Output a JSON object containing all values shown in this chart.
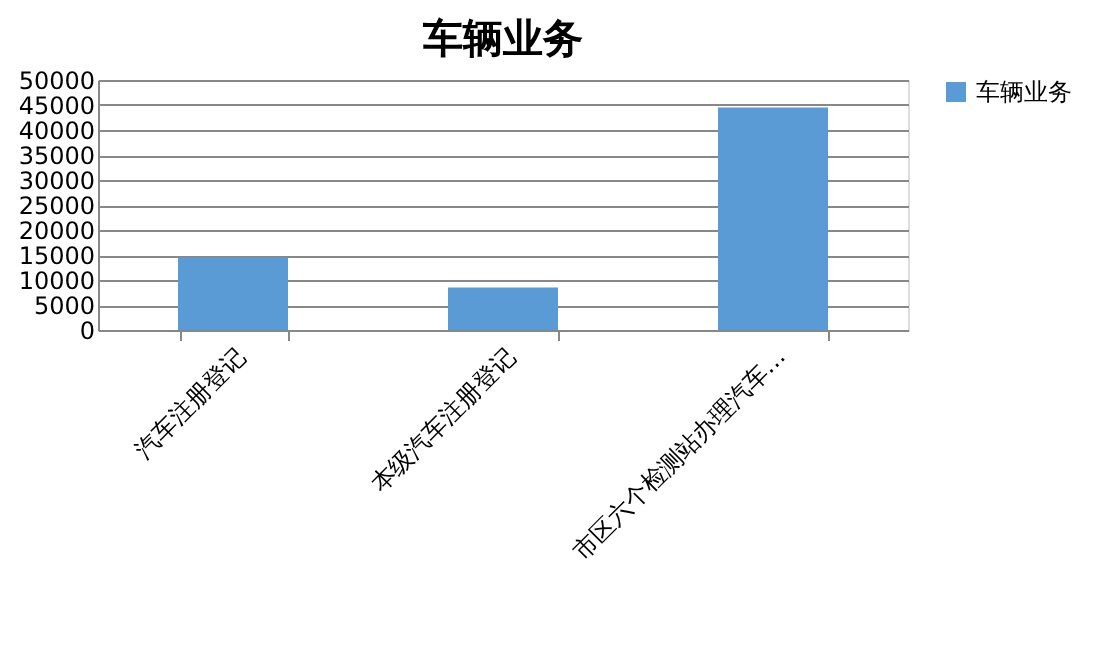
{
  "chart_data": {
    "type": "bar",
    "title": "车辆业务",
    "categories": [
      "汽车注册登记",
      "本级汽车注册登记",
      "市区六个检测站办理汽车…"
    ],
    "series": [
      {
        "name": "车辆业务",
        "color": "#5b9bd5",
        "values": [
          14500,
          8500,
          44500
        ]
      }
    ],
    "ylim": [
      0,
      50000
    ],
    "yticks": [
      0,
      5000,
      10000,
      15000,
      20000,
      25000,
      30000,
      35000,
      40000,
      45000,
      50000
    ],
    "grid": "y",
    "legend": "right"
  }
}
